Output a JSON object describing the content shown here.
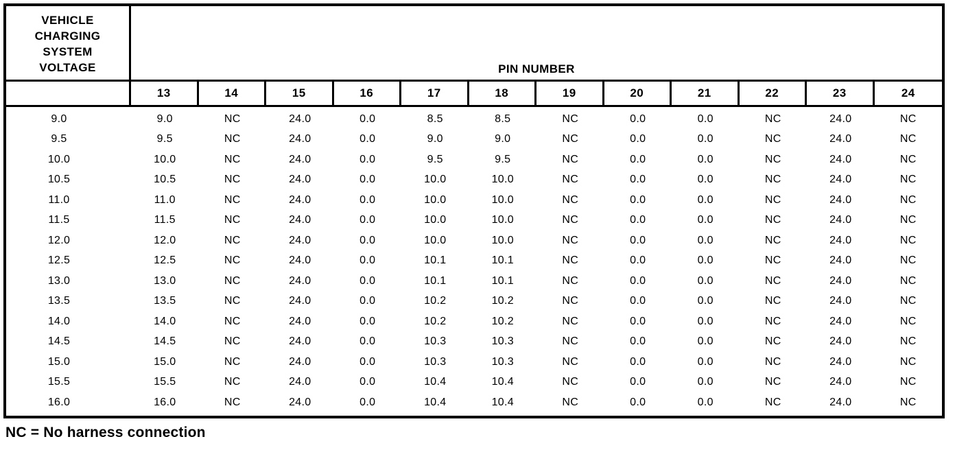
{
  "colors": {
    "ink": "#000000",
    "paper": "#ffffff"
  },
  "table": {
    "corner_header": {
      "text": "VEHICLE CHARGING SYSTEM VOLTAGE",
      "lines": [
        "VEHICLE",
        "CHARGING",
        "SYSTEM",
        "VOLTAGE"
      ]
    },
    "pin_group_header": "PIN NUMBER",
    "pin_columns": [
      "13",
      "14",
      "15",
      "16",
      "17",
      "18",
      "19",
      "20",
      "21",
      "22",
      "23",
      "24"
    ],
    "rows": [
      {
        "voltage": "9.0",
        "pins": [
          "9.0",
          "NC",
          "24.0",
          "0.0",
          "8.5",
          "8.5",
          "NC",
          "0.0",
          "0.0",
          "NC",
          "24.0",
          "NC"
        ]
      },
      {
        "voltage": "9.5",
        "pins": [
          "9.5",
          "NC",
          "24.0",
          "0.0",
          "9.0",
          "9.0",
          "NC",
          "0.0",
          "0.0",
          "NC",
          "24.0",
          "NC"
        ]
      },
      {
        "voltage": "10.0",
        "pins": [
          "10.0",
          "NC",
          "24.0",
          "0.0",
          "9.5",
          "9.5",
          "NC",
          "0.0",
          "0.0",
          "NC",
          "24.0",
          "NC"
        ]
      },
      {
        "voltage": "10.5",
        "pins": [
          "10.5",
          "NC",
          "24.0",
          "0.0",
          "10.0",
          "10.0",
          "NC",
          "0.0",
          "0.0",
          "NC",
          "24.0",
          "NC"
        ]
      },
      {
        "voltage": "11.0",
        "pins": [
          "11.0",
          "NC",
          "24.0",
          "0.0",
          "10.0",
          "10.0",
          "NC",
          "0.0",
          "0.0",
          "NC",
          "24.0",
          "NC"
        ]
      },
      {
        "voltage": "11.5",
        "pins": [
          "11.5",
          "NC",
          "24.0",
          "0.0",
          "10.0",
          "10.0",
          "NC",
          "0.0",
          "0.0",
          "NC",
          "24.0",
          "NC"
        ]
      },
      {
        "voltage": "12.0",
        "pins": [
          "12.0",
          "NC",
          "24.0",
          "0.0",
          "10.0",
          "10.0",
          "NC",
          "0.0",
          "0.0",
          "NC",
          "24.0",
          "NC"
        ]
      },
      {
        "voltage": "12.5",
        "pins": [
          "12.5",
          "NC",
          "24.0",
          "0.0",
          "10.1",
          "10.1",
          "NC",
          "0.0",
          "0.0",
          "NC",
          "24.0",
          "NC"
        ]
      },
      {
        "voltage": "13.0",
        "pins": [
          "13.0",
          "NC",
          "24.0",
          "0.0",
          "10.1",
          "10.1",
          "NC",
          "0.0",
          "0.0",
          "NC",
          "24.0",
          "NC"
        ]
      },
      {
        "voltage": "13.5",
        "pins": [
          "13.5",
          "NC",
          "24.0",
          "0.0",
          "10.2",
          "10.2",
          "NC",
          "0.0",
          "0.0",
          "NC",
          "24.0",
          "NC"
        ]
      },
      {
        "voltage": "14.0",
        "pins": [
          "14.0",
          "NC",
          "24.0",
          "0.0",
          "10.2",
          "10.2",
          "NC",
          "0.0",
          "0.0",
          "NC",
          "24.0",
          "NC"
        ]
      },
      {
        "voltage": "14.5",
        "pins": [
          "14.5",
          "NC",
          "24.0",
          "0.0",
          "10.3",
          "10.3",
          "NC",
          "0.0",
          "0.0",
          "NC",
          "24.0",
          "NC"
        ]
      },
      {
        "voltage": "15.0",
        "pins": [
          "15.0",
          "NC",
          "24.0",
          "0.0",
          "10.3",
          "10.3",
          "NC",
          "0.0",
          "0.0",
          "NC",
          "24.0",
          "NC"
        ]
      },
      {
        "voltage": "15.5",
        "pins": [
          "15.5",
          "NC",
          "24.0",
          "0.0",
          "10.4",
          "10.4",
          "NC",
          "0.0",
          "0.0",
          "NC",
          "24.0",
          "NC"
        ]
      },
      {
        "voltage": "16.0",
        "pins": [
          "16.0",
          "NC",
          "24.0",
          "0.0",
          "10.4",
          "10.4",
          "NC",
          "0.0",
          "0.0",
          "NC",
          "24.0",
          "NC"
        ]
      }
    ]
  },
  "footnote": "NC = No harness connection"
}
